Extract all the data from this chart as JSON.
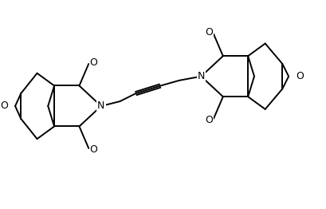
{
  "bg_color": "#ffffff",
  "line_color": "#000000",
  "lw": 1.4,
  "figsize": [
    4.1,
    2.62
  ],
  "dpi": 100,
  "xlim": [
    0,
    10
  ],
  "ylim": [
    0,
    6.4
  ]
}
